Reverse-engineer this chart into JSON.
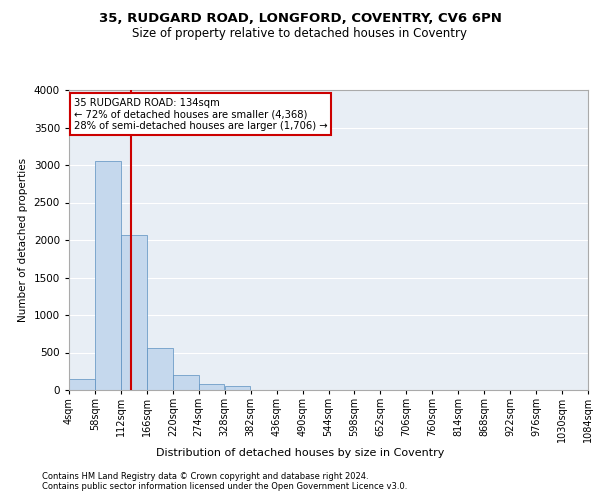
{
  "title1": "35, RUDGARD ROAD, LONGFORD, COVENTRY, CV6 6PN",
  "title2": "Size of property relative to detached houses in Coventry",
  "xlabel": "Distribution of detached houses by size in Coventry",
  "ylabel": "Number of detached properties",
  "footer1": "Contains HM Land Registry data © Crown copyright and database right 2024.",
  "footer2": "Contains public sector information licensed under the Open Government Licence v3.0.",
  "annotation_line1": "35 RUDGARD ROAD: 134sqm",
  "annotation_line2": "← 72% of detached houses are smaller (4,368)",
  "annotation_line3": "28% of semi-detached houses are larger (1,706) →",
  "property_size": 134,
  "bin_edges": [
    4,
    58,
    112,
    166,
    220,
    274,
    328,
    382,
    436,
    490,
    544,
    598,
    652,
    706,
    760,
    814,
    868,
    922,
    976,
    1030,
    1084
  ],
  "bin_labels": [
    "4sqm",
    "58sqm",
    "112sqm",
    "166sqm",
    "220sqm",
    "274sqm",
    "328sqm",
    "382sqm",
    "436sqm",
    "490sqm",
    "544sqm",
    "598sqm",
    "652sqm",
    "706sqm",
    "760sqm",
    "814sqm",
    "868sqm",
    "922sqm",
    "976sqm",
    "1030sqm",
    "1084sqm"
  ],
  "counts": [
    150,
    3060,
    2070,
    560,
    200,
    80,
    50,
    0,
    0,
    0,
    0,
    0,
    0,
    0,
    0,
    0,
    0,
    0,
    0,
    0
  ],
  "bar_color": "#c5d8ed",
  "bar_edge_color": "#5a8fc0",
  "vline_color": "#cc0000",
  "vline_x": 134,
  "bg_color": "#e8eef5",
  "annotation_box_color": "#cc0000",
  "ylim": [
    0,
    4000
  ],
  "yticks": [
    0,
    500,
    1000,
    1500,
    2000,
    2500,
    3000,
    3500,
    4000
  ]
}
